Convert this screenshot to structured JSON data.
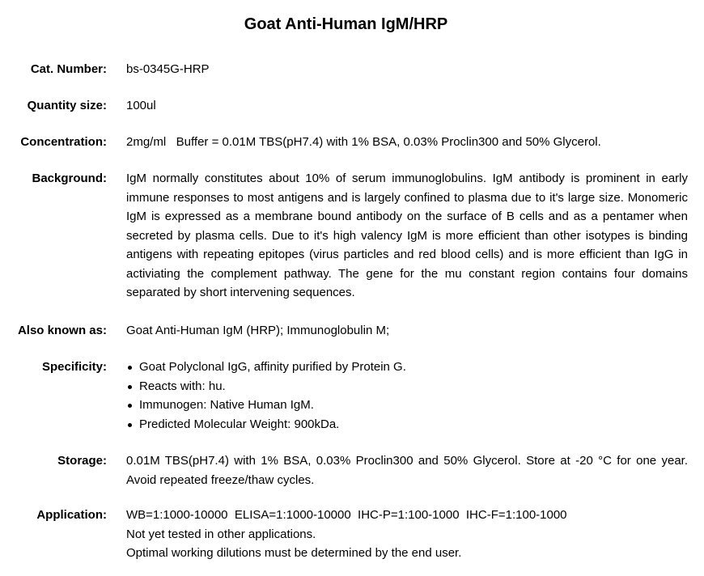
{
  "title": "Goat Anti-Human IgM/HRP",
  "fields": {
    "cat": {
      "label": "Cat. Number:",
      "value": "bs-0345G-HRP"
    },
    "qty": {
      "label": "Quantity size:",
      "value": "100ul"
    },
    "conc": {
      "label": "Concentration:",
      "value": "2mg/ml   Buffer = 0.01M TBS(pH7.4) with 1% BSA, 0.03% Proclin300 and 50% Glycerol."
    },
    "background": {
      "label": "Background:",
      "value": "IgM normally constitutes about 10% of serum immunoglobulins. IgM antibody is prominent in early immune responses to most antigens and is largely confined to plasma due to it's large size. Monomeric IgM is expressed as a membrane bound antibody on the surface of B cells and as a pentamer when secreted by plasma cells. Due to it's high valency IgM is more efficient than other isotypes is binding antigens with repeating epitopes (virus particles and red blood cells) and is more efficient than IgG in activiating the complement pathway. The gene for the mu constant region contains four domains separated by short intervening sequences."
    },
    "aka": {
      "label": "Also known as:",
      "value": "Goat Anti-Human IgM (HRP); Immunoglobulin M;"
    },
    "specificity": {
      "label": "Specificity:",
      "items": [
        "Goat Polyclonal IgG, affinity purified by Protein G.",
        "Reacts with: hu.",
        "Immunogen: Native Human IgM.",
        "Predicted Molecular Weight: 900kDa."
      ]
    },
    "storage": {
      "label": "Storage:",
      "value": "0.01M TBS(pH7.4) with 1% BSA, 0.03% Proclin300 and 50% Glycerol. Store at -20 °C for one year. Avoid repeated freeze/thaw cycles."
    },
    "application": {
      "label": "Application:",
      "lines": [
        "WB=1:1000-10000  ELISA=1:1000-10000  IHC-P=1:100-1000  IHC-F=1:100-1000",
        "Not yet tested in other applications.",
        "Optimal working dilutions must be determined by the end user."
      ]
    }
  }
}
